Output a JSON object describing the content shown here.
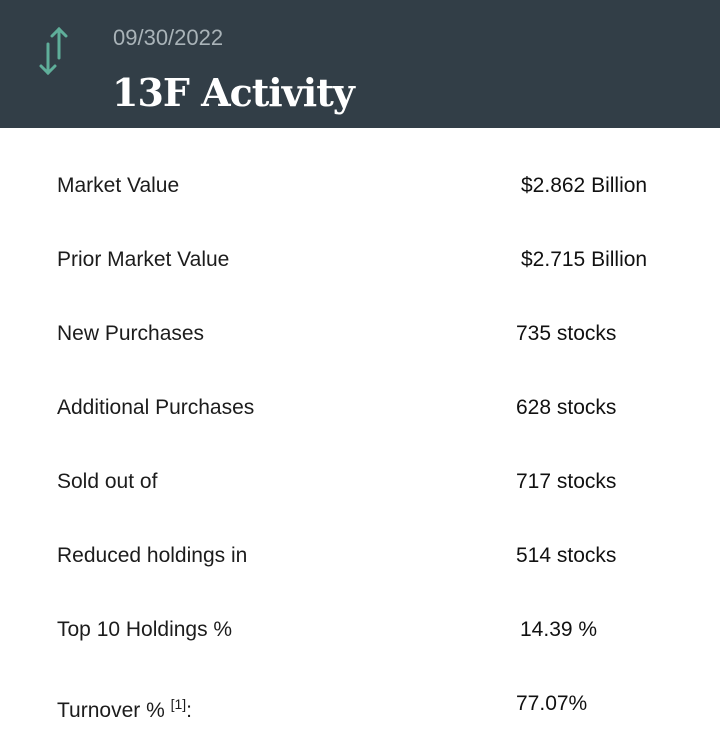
{
  "header": {
    "date": "09/30/2022",
    "title": "13F Activity",
    "icon": "up-down-arrows-icon",
    "accent": "#5fae9a",
    "background": "#323e47"
  },
  "rows": [
    {
      "label": "Market Value",
      "value": "$2.862 Billion"
    },
    {
      "label": "Prior Market Value",
      "value": "$2.715 Billion"
    },
    {
      "label": "New Purchases",
      "value": "735 stocks"
    },
    {
      "label": "Additional Purchases",
      "value": "628 stocks"
    },
    {
      "label": "Sold out of",
      "value": "717 stocks"
    },
    {
      "label": "Reduced holdings in",
      "value": "514 stocks"
    },
    {
      "label": "Top 10 Holdings %",
      "value": "14.39 %"
    },
    {
      "label": "Turnover % ",
      "footnote": "[1]",
      "suffix": ":",
      "value": "77.07%"
    }
  ]
}
